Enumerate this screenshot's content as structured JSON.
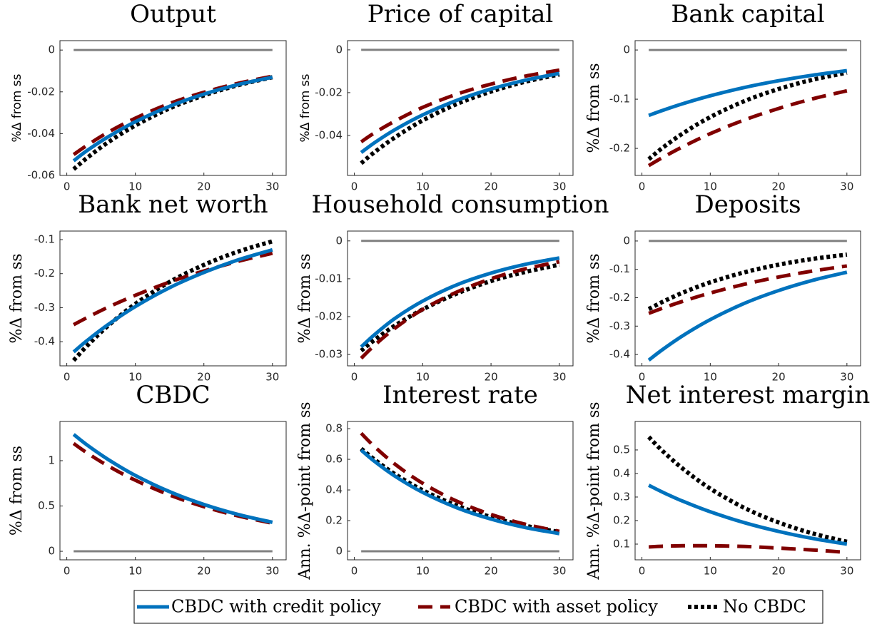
{
  "chart_data": [
    {
      "type": "line",
      "title": "Output",
      "ylabel": "%Δ from ss",
      "x": [
        1,
        3,
        6,
        10,
        15,
        20,
        25,
        30
      ],
      "xlim": [
        -1,
        32
      ],
      "xticks": [
        0,
        10,
        20,
        30
      ],
      "ylim": [
        -0.06,
        0.0045
      ],
      "yticks": [
        0,
        -0.02,
        -0.04,
        -0.06
      ],
      "reference_line": 0,
      "series": [
        {
          "name": "CBDC with credit policy",
          "color": "#0072bd",
          "style": "solid",
          "values": [
            -0.053,
            -0.048,
            -0.0416,
            -0.0343,
            -0.0269,
            -0.0211,
            -0.0165,
            -0.013
          ]
        },
        {
          "name": "CBDC with asset policy",
          "color": "#800000",
          "style": "dashed",
          "values": [
            -0.05,
            -0.0455,
            -0.0394,
            -0.0326,
            -0.0256,
            -0.0202,
            -0.0159,
            -0.0125
          ]
        },
        {
          "name": "No CBDC",
          "color": "#000000",
          "style": "dotted",
          "values": [
            -0.057,
            -0.0515,
            -0.0442,
            -0.0361,
            -0.0279,
            -0.0217,
            -0.0168,
            -0.013
          ]
        }
      ]
    },
    {
      "type": "line",
      "title": "Price of capital",
      "ylabel": "%Δ from ss",
      "x": [
        1,
        3,
        6,
        10,
        15,
        20,
        25,
        30
      ],
      "xlim": [
        -1,
        32
      ],
      "xticks": [
        0,
        10,
        20,
        30
      ],
      "ylim": [
        -0.0587,
        0.0043
      ],
      "yticks": [
        0,
        -0.02,
        -0.04
      ],
      "reference_line": 0,
      "series": [
        {
          "name": "CBDC with credit policy",
          "color": "#0072bd",
          "style": "solid",
          "values": [
            -0.048,
            -0.0433,
            -0.0372,
            -0.0304,
            -0.0236,
            -0.0183,
            -0.0142,
            -0.011
          ]
        },
        {
          "name": "CBDC with asset policy",
          "color": "#800000",
          "style": "dashed",
          "values": [
            -0.043,
            -0.0387,
            -0.0332,
            -0.0269,
            -0.0207,
            -0.016,
            -0.0123,
            -0.0095
          ]
        },
        {
          "name": "No CBDC",
          "color": "#000000",
          "style": "dotted",
          "values": [
            -0.053,
            -0.0477,
            -0.0408,
            -0.033,
            -0.0253,
            -0.0195,
            -0.0149,
            -0.0115
          ]
        }
      ]
    },
    {
      "type": "line",
      "title": "Bank capital",
      "ylabel": "%Δ from ss",
      "x": [
        1,
        3,
        6,
        10,
        15,
        20,
        25,
        30
      ],
      "xlim": [
        -1,
        32
      ],
      "xticks": [
        0,
        10,
        20,
        30
      ],
      "ylim": [
        -0.255,
        0.019
      ],
      "yticks": [
        0,
        -0.1,
        -0.2
      ],
      "reference_line": 0,
      "series": [
        {
          "name": "CBDC with credit policy",
          "color": "#0072bd",
          "style": "solid",
          "values": [
            -0.133,
            -0.1229,
            -0.1091,
            -0.0931,
            -0.0762,
            -0.0625,
            -0.0512,
            -0.042
          ]
        },
        {
          "name": "CBDC with asset policy",
          "color": "#800000",
          "style": "dashed",
          "values": [
            -0.235,
            -0.2188,
            -0.1965,
            -0.1701,
            -0.1422,
            -0.1189,
            -0.0992,
            -0.083
          ]
        },
        {
          "name": "No CBDC",
          "color": "#000000",
          "style": "dotted",
          "values": [
            -0.222,
            -0.1991,
            -0.1694,
            -0.1363,
            -0.1039,
            -0.0793,
            -0.0604,
            -0.046
          ]
        }
      ]
    },
    {
      "type": "line",
      "title": "Bank net worth",
      "ylabel": "%Δ from ss",
      "x": [
        1,
        3,
        6,
        10,
        15,
        20,
        25,
        30
      ],
      "xlim": [
        -1,
        32
      ],
      "xticks": [
        0,
        10,
        20,
        30
      ],
      "ylim": [
        -0.471,
        -0.0748
      ],
      "yticks": [
        -0.1,
        -0.2,
        -0.3,
        -0.4
      ],
      "series": [
        {
          "name": "CBDC with credit policy",
          "color": "#0072bd",
          "style": "solid",
          "values": [
            -0.43,
            -0.396,
            -0.35,
            -0.2967,
            -0.2412,
            -0.1965,
            -0.1595,
            -0.13
          ]
        },
        {
          "name": "CBDC with asset policy",
          "color": "#800000",
          "style": "dashed",
          "values": [
            -0.35,
            -0.3287,
            -0.2989,
            -0.2636,
            -0.2247,
            -0.1922,
            -0.1638,
            -0.14
          ]
        },
        {
          "name": "No CBDC",
          "color": "#000000",
          "style": "dotted",
          "values": [
            -0.455,
            -0.4113,
            -0.3535,
            -0.2889,
            -0.2243,
            -0.1743,
            -0.1351,
            -0.105
          ]
        }
      ]
    },
    {
      "type": "line",
      "title": "Household consumption",
      "ylabel": "%Δ from ss",
      "x": [
        1,
        3,
        6,
        10,
        15,
        20,
        25,
        30
      ],
      "xlim": [
        -1,
        32
      ],
      "xticks": [
        0,
        10,
        20,
        30
      ],
      "ylim": [
        -0.033,
        0.0026
      ],
      "yticks": [
        0,
        -0.01,
        -0.02,
        -0.03
      ],
      "reference_line": 0,
      "series": [
        {
          "name": "CBDC with credit policy",
          "color": "#0072bd",
          "style": "solid",
          "values": [
            -0.028,
            -0.0247,
            -0.0204,
            -0.0159,
            -0.0116,
            -0.0085,
            -0.0062,
            -0.0045
          ]
        },
        {
          "name": "CBDC with asset policy",
          "color": "#800000",
          "style": "dashed",
          "values": [
            -0.031,
            -0.0275,
            -0.023,
            -0.0181,
            -0.0135,
            -0.01,
            -0.0074,
            -0.0055
          ]
        },
        {
          "name": "No CBDC",
          "color": "#000000",
          "style": "dotted",
          "values": [
            -0.029,
            -0.0261,
            -0.0223,
            -0.0181,
            -0.0139,
            -0.0106,
            -0.0082,
            -0.0063
          ]
        }
      ]
    },
    {
      "type": "line",
      "title": "Deposits",
      "ylabel": "%Δ from ss",
      "x": [
        1,
        3,
        6,
        10,
        15,
        20,
        25,
        30
      ],
      "xlim": [
        -1,
        32
      ],
      "xticks": [
        0,
        10,
        20,
        30
      ],
      "ylim": [
        -0.44,
        0.035
      ],
      "yticks": [
        0,
        -0.1,
        -0.2,
        -0.3,
        -0.4
      ],
      "reference_line": 0,
      "series": [
        {
          "name": "CBDC with credit policy",
          "color": "#0072bd",
          "style": "solid",
          "values": [
            -0.42,
            -0.383,
            -0.3335,
            -0.2772,
            -0.2197,
            -0.1747,
            -0.1386,
            -0.11
          ]
        },
        {
          "name": "CBDC with asset policy",
          "color": "#800000",
          "style": "dashed",
          "values": [
            -0.255,
            -0.2369,
            -0.2124,
            -0.1833,
            -0.1525,
            -0.127,
            -0.1058,
            -0.088
          ]
        },
        {
          "name": "No CBDC",
          "color": "#000000",
          "style": "dotted",
          "values": [
            -0.24,
            -0.2148,
            -0.1819,
            -0.1457,
            -0.1104,
            -0.0835,
            -0.0631,
            -0.048
          ]
        }
      ]
    },
    {
      "type": "line",
      "title": "CBDC",
      "ylabel": "%Δ from ss",
      "x": [
        1,
        3,
        6,
        10,
        15,
        20,
        25,
        30
      ],
      "xlim": [
        -1,
        32
      ],
      "xticks": [
        0,
        10,
        20,
        30
      ],
      "ylim": [
        -0.094,
        1.433
      ],
      "yticks": [
        0,
        0.5,
        1
      ],
      "reference_line": 0,
      "series": [
        {
          "name": "CBDC with credit policy",
          "color": "#0072bd",
          "style": "solid",
          "values": [
            1.29,
            1.1713,
            1.0152,
            0.8372,
            0.6579,
            0.5173,
            0.4064,
            0.32
          ]
        },
        {
          "name": "CBDC with asset policy",
          "color": "#800000",
          "style": "dashed",
          "values": [
            1.19,
            1.0841,
            0.9437,
            0.7842,
            0.6212,
            0.4927,
            0.3903,
            0.31
          ]
        }
      ]
    },
    {
      "type": "line",
      "title": "Interest rate",
      "ylabel": "Ann. %Δ-point from ss",
      "x": [
        1,
        3,
        6,
        10,
        15,
        20,
        25,
        30
      ],
      "xlim": [
        -1,
        32
      ],
      "xticks": [
        0,
        10,
        20,
        30
      ],
      "ylim": [
        -0.056,
        0.847
      ],
      "yticks": [
        0,
        0.2,
        0.4,
        0.6,
        0.8
      ],
      "reference_line": 0,
      "series": [
        {
          "name": "CBDC with credit policy",
          "color": "#0072bd",
          "style": "solid",
          "values": [
            0.66,
            0.5848,
            0.4884,
            0.3841,
            0.2838,
            0.2099,
            0.1551,
            0.115
          ]
        },
        {
          "name": "CBDC with asset policy",
          "color": "#800000",
          "style": "dashed",
          "values": [
            0.77,
            0.6807,
            0.5667,
            0.4435,
            0.3265,
            0.2402,
            0.1763,
            0.13
          ]
        },
        {
          "name": "No CBDC",
          "color": "#000000",
          "style": "dotted",
          "values": [
            0.67,
            0.597,
            0.5018,
            0.398,
            0.2982,
            0.2231,
            0.1668,
            0.125
          ]
        }
      ]
    },
    {
      "type": "line",
      "title": "Net interest margin",
      "ylabel": "Ann. %Δ-point from ss",
      "x": [
        1,
        3,
        6,
        10,
        15,
        20,
        25,
        30
      ],
      "xlim": [
        -1,
        32
      ],
      "xticks": [
        0,
        10,
        20,
        30
      ],
      "ylim": [
        0.0333,
        0.621
      ],
      "yticks": [
        0.1,
        0.2,
        0.3,
        0.4,
        0.5
      ],
      "series": [
        {
          "name": "CBDC with credit policy",
          "color": "#0072bd",
          "style": "solid",
          "values": [
            0.35,
            0.321,
            0.2821,
            0.2373,
            0.1911,
            0.154,
            0.1239,
            0.1
          ]
        },
        {
          "name": "CBDC with asset policy",
          "color": "#800000",
          "style": "dashed",
          "values": [
            0.088,
            0.091,
            0.093,
            0.093,
            0.09,
            0.083,
            0.075,
            0.065
          ]
        },
        {
          "name": "No CBDC",
          "color": "#000000",
          "style": "dotted",
          "values": [
            0.555,
            0.4962,
            0.4201,
            0.3358,
            0.2536,
            0.192,
            0.1454,
            0.11
          ]
        }
      ]
    }
  ]
}
